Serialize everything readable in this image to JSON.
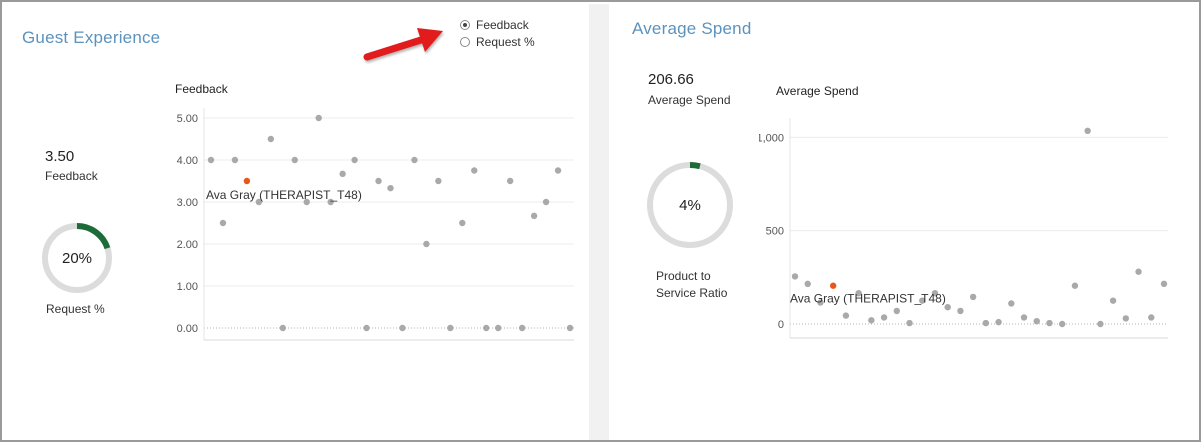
{
  "colors": {
    "accent_title": "#5b93bf",
    "gauge_fill": "#1e6b3a",
    "gauge_track": "#dcdcdc",
    "point_default": "#a9a9a9",
    "point_highlight": "#e8561a",
    "arrow": "#e21a1a"
  },
  "guest_experience": {
    "title": "Guest Experience",
    "kpi_value": "3.50",
    "kpi_label": "Feedback",
    "gauge": {
      "percent": 20,
      "label_text": "20%",
      "caption": "Request %"
    },
    "radio": {
      "options": [
        {
          "label": "Feedback",
          "selected": true
        },
        {
          "label": "Request %",
          "selected": false
        }
      ]
    },
    "chart_data": {
      "type": "scatter",
      "title": "Feedback",
      "ylim": [
        0,
        5
      ],
      "y_ticks": [
        "0.00",
        "1.00",
        "2.00",
        "3.00",
        "4.00",
        "5.00"
      ],
      "values": [
        4.0,
        2.5,
        4.0,
        3.5,
        3.0,
        4.5,
        0.0,
        4.0,
        3.0,
        5.0,
        3.0,
        3.67,
        4.0,
        0.0,
        3.5,
        3.33,
        0.0,
        4.0,
        2.0,
        3.5,
        0.0,
        2.5,
        3.75,
        0.0,
        0.0,
        3.5,
        0.0,
        2.67,
        3.0,
        3.75,
        0.0
      ],
      "highlight_index": 3,
      "highlight_label": "Ava Gray (THERAPIST_T48)"
    }
  },
  "average_spend": {
    "title": "Average Spend",
    "kpi_value": "206.66",
    "kpi_label": "Average Spend",
    "gauge": {
      "percent": 4,
      "label_text": "4%",
      "caption_line1": "Product to",
      "caption_line2": "Service Ratio"
    },
    "chart_data": {
      "type": "scatter",
      "title": "Average Spend",
      "ylim": [
        0,
        1050
      ],
      "y_ticks": [
        "0",
        "500",
        "1,000"
      ],
      "values": [
        255,
        215,
        115,
        205,
        45,
        165,
        20,
        35,
        70,
        5,
        125,
        165,
        90,
        70,
        145,
        5,
        10,
        110,
        35,
        15,
        5,
        0,
        205,
        1035,
        0,
        125,
        30,
        280,
        35,
        215
      ],
      "highlight_index": 3,
      "highlight_label": "Ava Gray (THERAPIST_T48)"
    }
  }
}
